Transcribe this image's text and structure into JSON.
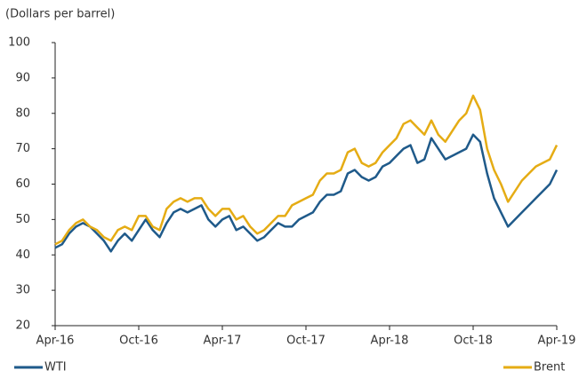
{
  "chart_data": {
    "type": "line",
    "y_label": "(Dollars per barrel)",
    "categories": [
      "Apr-16",
      null,
      null,
      null,
      null,
      null,
      null,
      null,
      null,
      null,
      null,
      null,
      "Oct-16",
      null,
      null,
      null,
      null,
      null,
      null,
      null,
      null,
      null,
      null,
      null,
      "Apr-17",
      null,
      null,
      null,
      null,
      null,
      null,
      null,
      null,
      null,
      null,
      null,
      "Oct-17",
      null,
      null,
      null,
      null,
      null,
      null,
      null,
      null,
      null,
      null,
      null,
      "Apr-18",
      null,
      null,
      null,
      null,
      null,
      null,
      null,
      null,
      null,
      null,
      null,
      "Oct-18",
      null,
      null,
      null,
      null,
      null,
      null,
      null,
      null,
      null,
      null,
      null,
      "Apr-19"
    ],
    "series": [
      {
        "name": "WTI",
        "color": "#1f5a8a",
        "values": [
          42,
          43,
          46,
          48,
          49,
          48,
          46,
          44,
          41,
          44,
          46,
          44,
          47,
          50,
          47,
          45,
          49,
          52,
          53,
          52,
          53,
          54,
          50,
          48,
          50,
          51,
          47,
          48,
          46,
          44,
          45,
          47,
          49,
          48,
          48,
          50,
          51,
          52,
          55,
          57,
          57,
          58,
          63,
          64,
          62,
          61,
          62,
          65,
          66,
          68,
          70,
          71,
          66,
          67,
          73,
          70,
          67,
          68,
          69,
          70,
          74,
          72,
          63,
          56,
          52,
          48,
          50,
          52,
          54,
          56,
          58,
          60,
          64
        ]
      },
      {
        "name": "Brent",
        "color": "#e5ac14",
        "values": [
          43,
          44,
          47,
          49,
          50,
          48,
          47,
          45,
          44,
          47,
          48,
          47,
          51,
          51,
          48,
          47,
          53,
          55,
          56,
          55,
          56,
          56,
          53,
          51,
          53,
          53,
          50,
          51,
          48,
          46,
          47,
          49,
          51,
          51,
          54,
          55,
          56,
          57,
          61,
          63,
          63,
          64,
          69,
          70,
          66,
          65,
          66,
          69,
          71,
          73,
          77,
          78,
          76,
          74,
          78,
          74,
          72,
          75,
          78,
          80,
          85,
          81,
          70,
          64,
          60,
          55,
          58,
          61,
          63,
          65,
          66,
          67,
          71
        ]
      }
    ],
    "ylim": [
      20,
      100
    ],
    "yticks": [
      20,
      30,
      40,
      50,
      60,
      70,
      80,
      90,
      100
    ],
    "grid": false,
    "legend": "bottom"
  }
}
